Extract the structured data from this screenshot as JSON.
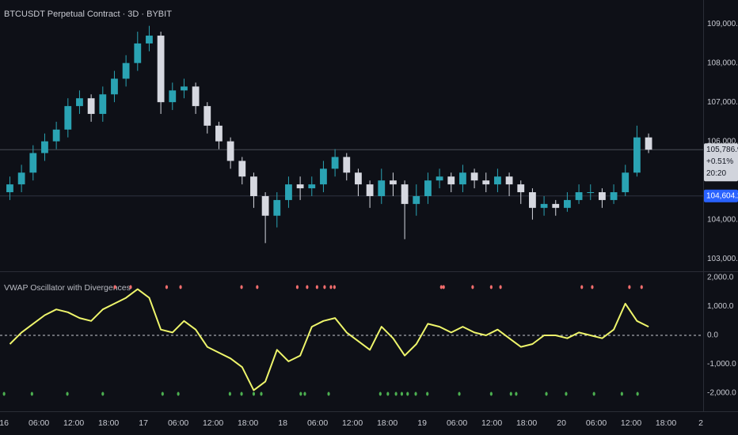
{
  "chart_data": [
    {
      "type": "candlestick",
      "title": "BTCUSDT Perpetual Contract · 3D · BYBIT",
      "x": [
        1,
        3,
        5,
        7,
        9,
        11,
        13,
        15,
        17,
        19,
        21,
        23,
        25,
        27,
        29,
        31,
        33,
        35,
        37,
        39,
        41,
        43,
        45,
        47,
        49,
        51,
        53,
        55,
        57,
        59,
        61,
        63,
        65,
        67,
        69,
        71,
        73,
        75,
        77,
        79,
        81,
        83,
        85,
        87,
        89,
        91,
        93,
        95,
        97,
        99,
        101,
        103,
        105,
        107,
        109,
        111
      ],
      "open": [
        104700,
        104900,
        105200,
        105700,
        106000,
        106300,
        106900,
        107100,
        106700,
        107200,
        107600,
        108000,
        108500,
        108700,
        107000,
        107300,
        107400,
        106900,
        106400,
        106000,
        105500,
        105100,
        104600,
        104100,
        104500,
        104900,
        104800,
        104900,
        105300,
        105600,
        105200,
        104900,
        104600,
        105000,
        104900,
        104400,
        104600,
        105000,
        105100,
        104900,
        105200,
        105000,
        104900,
        105100,
        104900,
        104700,
        104300,
        104400,
        104300,
        104500,
        104700,
        104700,
        104500,
        104700,
        105200,
        106100
      ],
      "high": [
        105100,
        105400,
        105900,
        106200,
        106500,
        107100,
        107300,
        107200,
        107400,
        107800,
        108200,
        108800,
        108950,
        108800,
        107500,
        107600,
        107500,
        107000,
        106500,
        106100,
        105600,
        105200,
        104700,
        104700,
        105100,
        105100,
        105100,
        105500,
        105800,
        105700,
        105300,
        105000,
        105300,
        105200,
        105000,
        104900,
        105200,
        105300,
        105200,
        105400,
        105300,
        105200,
        105300,
        105200,
        105000,
        104800,
        104600,
        104500,
        104700,
        104900,
        104900,
        104800,
        104900,
        105400,
        106400,
        106200
      ],
      "low": [
        104500,
        104700,
        105000,
        105500,
        105800,
        106100,
        106700,
        106500,
        106500,
        107000,
        107400,
        107800,
        108300,
        106700,
        106800,
        107100,
        106700,
        106200,
        105800,
        105300,
        104900,
        104300,
        103400,
        103800,
        104300,
        104500,
        104600,
        104700,
        105100,
        105000,
        104600,
        104300,
        104400,
        104600,
        103500,
        104100,
        104400,
        104800,
        104700,
        104700,
        104800,
        104700,
        104700,
        104600,
        104400,
        104000,
        104100,
        104100,
        104200,
        104400,
        104500,
        104300,
        104400,
        104600,
        105100,
        105700
      ],
      "close": [
        104900,
        105200,
        105700,
        106000,
        106300,
        106900,
        107100,
        106700,
        107200,
        107600,
        108000,
        108500,
        108700,
        107000,
        107300,
        107400,
        106900,
        106400,
        106000,
        105500,
        105100,
        104600,
        104100,
        104500,
        104900,
        104800,
        104900,
        105300,
        105600,
        105200,
        104900,
        104600,
        105000,
        104900,
        104400,
        104600,
        105000,
        105100,
        104900,
        105200,
        105000,
        104900,
        105100,
        104900,
        104700,
        104300,
        104400,
        104300,
        104500,
        104700,
        104700,
        104500,
        104700,
        105200,
        106100,
        105786.9
      ],
      "up_color": "#2aa3b3",
      "down_color": "#d6d8e0",
      "xlim": [
        -0.7,
        120.4
      ],
      "xticks": [
        {
          "value": 0,
          "label": "16"
        },
        {
          "value": 6,
          "label": "06:00"
        },
        {
          "value": 12,
          "label": "12:00"
        },
        {
          "value": 18,
          "label": "18:00"
        },
        {
          "value": 24,
          "label": "17"
        },
        {
          "value": 30,
          "label": "06:00"
        },
        {
          "value": 36,
          "label": "12:00"
        },
        {
          "value": 42,
          "label": "18:00"
        },
        {
          "value": 48,
          "label": "18"
        },
        {
          "value": 54,
          "label": "06:00"
        },
        {
          "value": 60,
          "label": "12:00"
        },
        {
          "value": 66,
          "label": "18:00"
        },
        {
          "value": 72,
          "label": "19"
        },
        {
          "value": 78,
          "label": "06:00"
        },
        {
          "value": 84,
          "label": "12:00"
        },
        {
          "value": 90,
          "label": "18:00"
        },
        {
          "value": 96,
          "label": "20"
        },
        {
          "value": 102,
          "label": "06:00"
        },
        {
          "value": 108,
          "label": "12:00"
        },
        {
          "value": 114,
          "label": "18:00"
        },
        {
          "value": 120,
          "label": "2"
        }
      ],
      "ylim": [
        102680,
        109610
      ],
      "yticks": [
        {
          "value": 103000,
          "label": "103,000.0"
        },
        {
          "value": 104000,
          "label": "104,000.0"
        },
        {
          "value": 106000,
          "label": "106,000.0"
        },
        {
          "value": 107000,
          "label": "107,000.0"
        },
        {
          "value": 108000,
          "label": "108,000.0"
        },
        {
          "value": 109000,
          "label": "109,000.0"
        }
      ],
      "last_price": {
        "value": 105786.9,
        "label": "105,786.9"
      },
      "change": "+0.51%",
      "countdown": "20:20",
      "ref_price": {
        "value": 104604.2,
        "label": "104,604.2"
      }
    },
    {
      "type": "line",
      "title": "VWAP Oscillator with Divergences",
      "color": "#eef56b",
      "x": [
        1,
        3,
        5,
        7,
        9,
        11,
        13,
        15,
        17,
        19,
        21,
        23,
        25,
        27,
        29,
        31,
        33,
        35,
        37,
        39,
        41,
        43,
        45,
        47,
        49,
        51,
        53,
        55,
        57,
        59,
        61,
        63,
        65,
        67,
        69,
        71,
        73,
        75,
        77,
        79,
        81,
        83,
        85,
        87,
        89,
        91,
        93,
        95,
        97,
        99,
        101,
        103,
        105,
        107,
        109,
        111
      ],
      "values": [
        -300,
        100,
        400,
        700,
        900,
        800,
        600,
        500,
        900,
        1100,
        1300,
        1600,
        1300,
        200,
        100,
        500,
        200,
        -400,
        -600,
        -800,
        -1100,
        -1900,
        -1600,
        -500,
        -900,
        -700,
        300,
        500,
        600,
        100,
        -200,
        -500,
        300,
        -100,
        -700,
        -300,
        400,
        300,
        100,
        300,
        100,
        0,
        200,
        -100,
        -400,
        -300,
        0,
        0,
        -100,
        100,
        0,
        -100,
        200,
        1100,
        500,
        300
      ],
      "bearish_x": [
        19.1,
        21.8,
        28,
        30.4,
        40.9,
        43.6,
        50.5,
        52.2,
        53.9,
        55.2,
        56.3,
        56.9,
        75.3,
        75.7,
        80.7,
        83.9,
        85.5,
        99.5,
        101.3,
        107.7,
        109.8
      ],
      "bearish_color": "#f26d6d",
      "bullish_x": [
        0,
        4.8,
        10.9,
        17,
        27.3,
        30,
        38.9,
        40.9,
        43,
        44.3,
        51.1,
        51.8,
        55.9,
        64.8,
        66.1,
        67.5,
        68.5,
        69.5,
        70.9,
        72.9,
        78.4,
        83.9,
        87.3,
        88.2,
        93.4,
        96.8,
        101.6,
        106.4,
        109.1
      ],
      "bullish_color": "#4caf50",
      "ylim": [
        -2630,
        2220
      ],
      "yticks": [
        {
          "value": 2000,
          "label": "2,000.0"
        },
        {
          "value": 1000,
          "label": "1,000.0"
        },
        {
          "value": 0,
          "label": "0.0"
        },
        {
          "value": -1000,
          "label": "-1,000.0"
        },
        {
          "value": -2000,
          "label": "-2,000.0"
        }
      ]
    }
  ]
}
